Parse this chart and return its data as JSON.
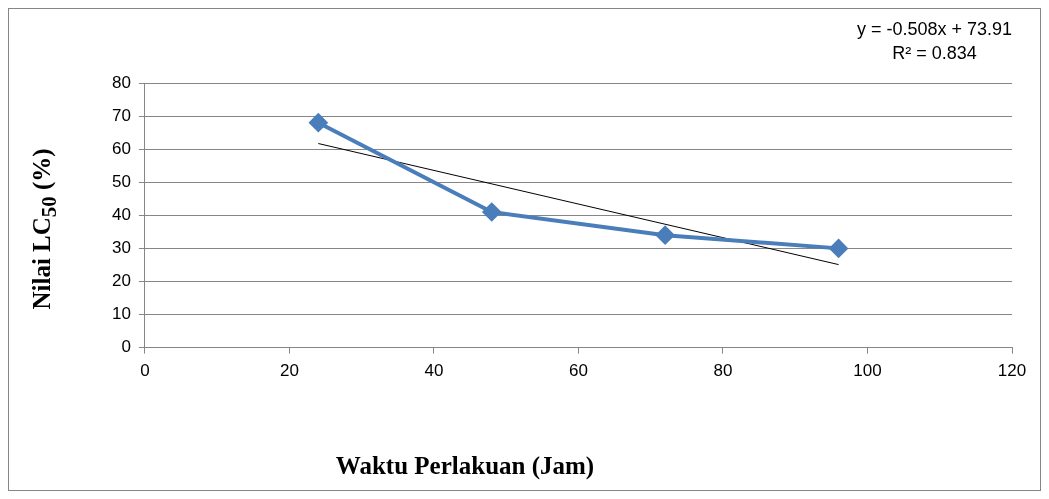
{
  "chart_data": {
    "type": "line",
    "xlabel": "Waktu Perlakuan (Jam)",
    "ylabel": "Nilai LC$_{50}$ (%)",
    "annotations": [
      "y = -0.508x + 73.91",
      "R² = 0.834"
    ],
    "x": [
      24,
      48,
      72,
      96
    ],
    "series": [
      {
        "color": "#4a7ebb",
        "values": [
          68,
          41,
          34,
          30
        ],
        "marker": "diamond"
      },
      {
        "type": "line",
        "color": "#000000",
        "x": [
          24,
          96
        ],
        "values": [
          61.7,
          25.1
        ],
        "marker": "none"
      }
    ],
    "xlim": [
      0,
      120
    ],
    "xticks": [
      0,
      20,
      40,
      60,
      80,
      100,
      120
    ],
    "ylim": [
      0,
      80
    ],
    "yticks": [
      0,
      10,
      20,
      30,
      40,
      50,
      60,
      70,
      80
    ],
    "grid": "y",
    "line_style": "solid"
  }
}
